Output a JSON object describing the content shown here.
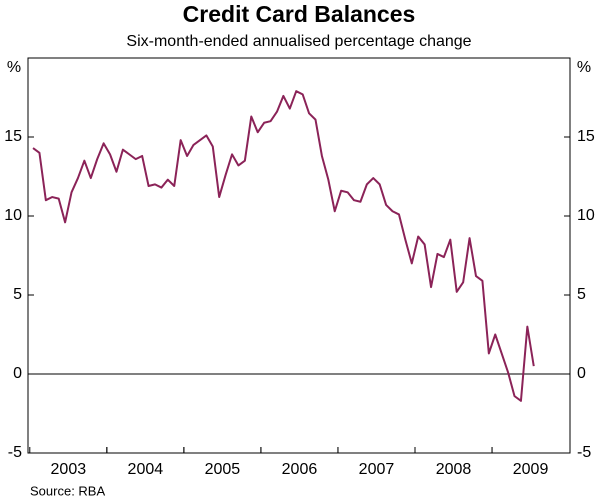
{
  "chart_data": {
    "type": "line",
    "title": "Credit Card Balances",
    "subtitle": "Six-month-ended annualised percentage change",
    "ylabel": "%",
    "source": "Source: RBA",
    "categories": [
      null,
      null,
      null,
      null,
      null,
      null,
      "2003",
      null,
      null,
      null,
      null,
      null,
      null,
      null,
      null,
      null,
      null,
      null,
      "2004",
      null,
      null,
      null,
      null,
      null,
      null,
      null,
      null,
      null,
      null,
      null,
      "2005",
      null,
      null,
      null,
      null,
      null,
      null,
      null,
      null,
      null,
      null,
      null,
      "2006",
      null,
      null,
      null,
      null,
      null,
      null,
      null,
      null,
      null,
      null,
      null,
      "2007",
      null,
      null,
      null,
      null,
      null,
      null,
      null,
      null,
      null,
      null,
      null,
      "2008",
      null,
      null,
      null,
      null,
      null,
      null,
      null,
      null,
      null,
      null,
      null,
      "2009"
    ],
    "series": [
      {
        "name": "Credit card balances",
        "color": "#8b2358",
        "values": [
          14.3,
          14.0,
          11.0,
          11.2,
          11.1,
          9.6,
          11.5,
          12.4,
          13.5,
          12.4,
          13.6,
          14.6,
          13.9,
          12.8,
          14.2,
          13.9,
          13.6,
          13.8,
          11.9,
          12.0,
          11.8,
          12.3,
          11.9,
          14.8,
          13.8,
          14.5,
          14.8,
          15.1,
          14.4,
          11.2,
          12.6,
          13.9,
          13.2,
          13.5,
          16.3,
          15.3,
          15.9,
          16.0,
          16.6,
          17.6,
          16.8,
          17.9,
          17.7,
          16.5,
          16.1,
          13.8,
          12.3,
          10.3,
          11.6,
          11.5,
          11.0,
          10.9,
          12.0,
          12.4,
          12.0,
          10.7,
          10.3,
          10.1,
          8.5,
          7.0,
          8.7,
          8.2,
          5.5,
          7.6,
          7.4,
          8.5,
          5.2,
          5.8,
          8.6,
          6.2,
          5.9,
          1.3,
          2.5,
          1.3,
          0.1,
          -1.4,
          -1.7,
          3.0,
          0.5
        ]
      }
    ],
    "ylim": [
      -5,
      20
    ],
    "yticks": [
      -5,
      0,
      5,
      10,
      15
    ]
  }
}
